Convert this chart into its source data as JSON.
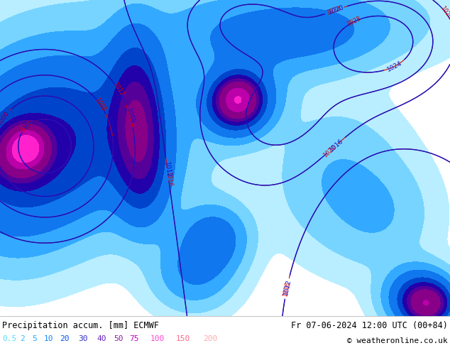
{
  "title_left": "Precipitation accum. [mm] ECMWF",
  "title_right": "Fr 07-06-2024 12:00 UTC (00+84)",
  "copyright": "© weatheronline.co.uk",
  "legend_values": [
    "0.5",
    "2",
    "5",
    "10",
    "20",
    "30",
    "40",
    "50",
    "75",
    "100",
    "150",
    "200"
  ],
  "legend_colors_text": [
    "#55ddff",
    "#33bbff",
    "#22aaff",
    "#1188ff",
    "#0055ff",
    "#3333cc",
    "#6622bb",
    "#882299",
    "#cc00cc",
    "#ff44cc",
    "#ff6688",
    "#ffaaaa"
  ],
  "legend_box_colors": [
    "#aaeeff",
    "#66ccff",
    "#3399ff",
    "#1166ee",
    "#0033cc",
    "#2200aa",
    "#550099",
    "#770088",
    "#aa00aa",
    "#ff22bb",
    "#ff5566",
    "#ffbbbb"
  ],
  "bg_color": "#ffffff",
  "map_bg": "#cce8ff",
  "fig_width": 6.34,
  "fig_height": 4.9,
  "dpi": 100
}
